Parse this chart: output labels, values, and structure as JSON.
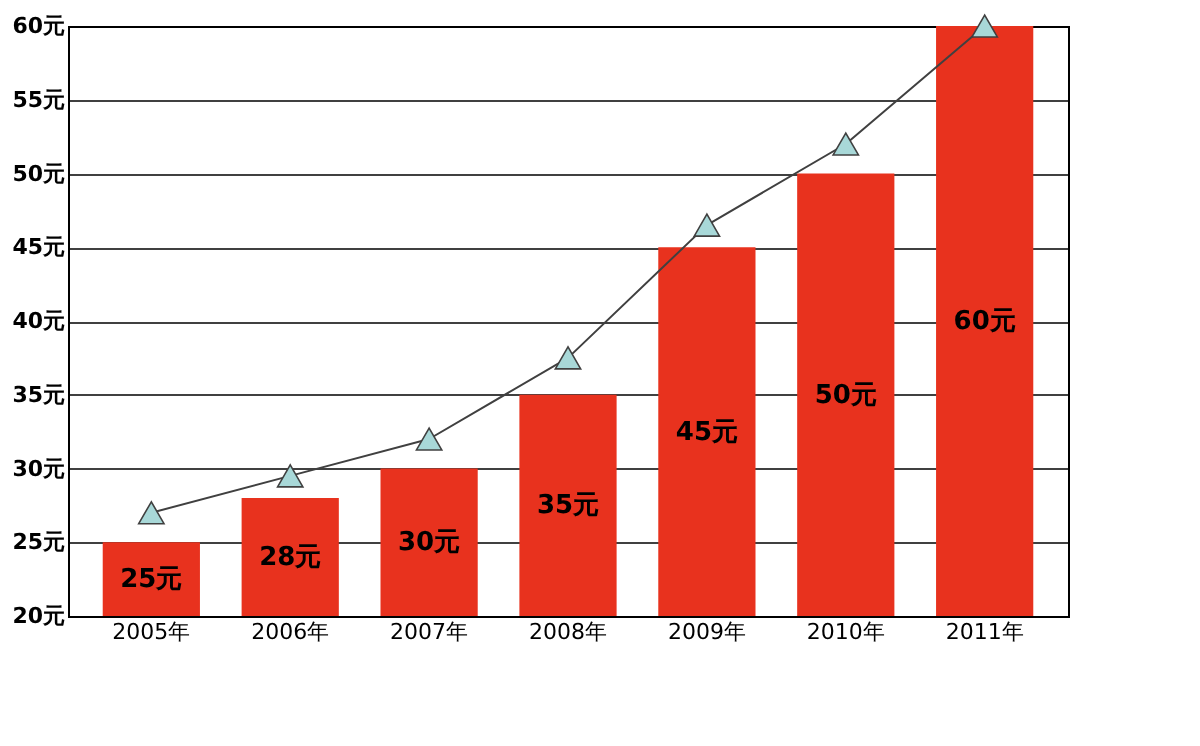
{
  "chart_data": {
    "type": "bar",
    "categories": [
      "2005年",
      "2006年",
      "2007年",
      "2008年",
      "2009年",
      "2010年",
      "2011年"
    ],
    "series": [
      {
        "color": "#e8321e",
        "values": [
          25,
          28,
          30,
          35,
          45,
          50,
          60
        ],
        "value_labels": [
          "25元",
          "28元",
          "30元",
          "35元",
          "45元",
          "50元",
          "60元"
        ]
      },
      {
        "type": "line",
        "color": "#404040",
        "values": [
          27,
          29.5,
          32,
          37.5,
          46.5,
          52,
          60
        ],
        "marker": "triangle",
        "line_style": "solid"
      }
    ],
    "ylim": [
      20,
      60
    ],
    "yticks": [
      {
        "value": 20,
        "label": "20元"
      },
      {
        "value": 25,
        "label": "25元"
      },
      {
        "value": 30,
        "label": "30元"
      },
      {
        "value": 35,
        "label": "35元"
      },
      {
        "value": 40,
        "label": "40元"
      },
      {
        "value": 45,
        "label": "45元"
      },
      {
        "value": 50,
        "label": "50元"
      },
      {
        "value": 55,
        "label": "55元"
      },
      {
        "value": 60,
        "label": "60元"
      }
    ],
    "grid": "y"
  }
}
